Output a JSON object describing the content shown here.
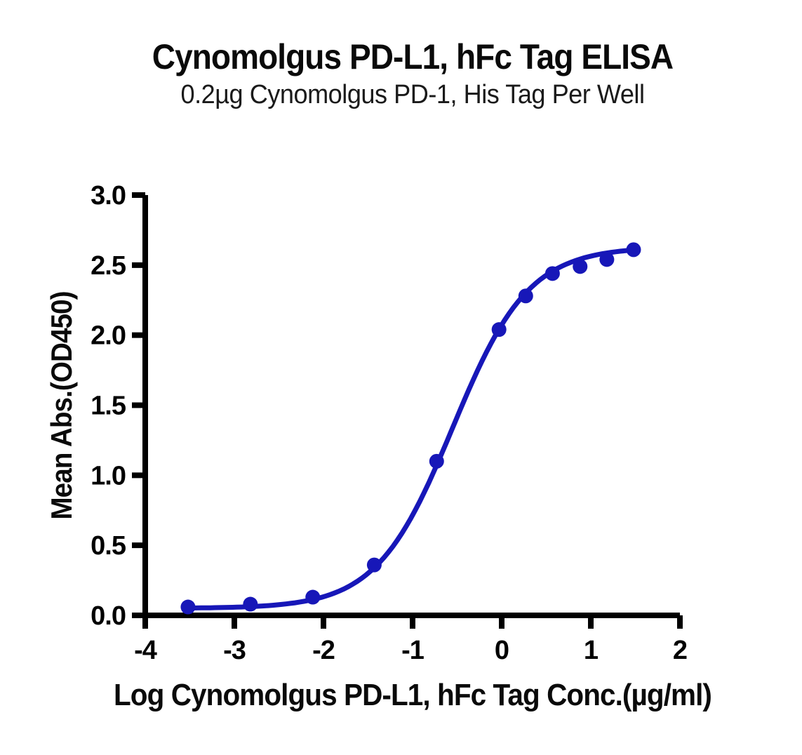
{
  "title": "Cynomolgus PD-L1, hFc Tag ELISA",
  "subtitle": "0.2µg Cynomolgus PD-1, His Tag Per Well",
  "chart_data": {
    "type": "line",
    "title": "Cynomolgus PD-L1, hFc Tag ELISA",
    "subtitle": "0.2µg Cynomolgus PD-1, His Tag Per Well",
    "xlabel": "Log Cynomolgus PD-L1, hFc Tag Conc.(µg/ml)",
    "ylabel": "Mean Abs.(OD450)",
    "xlim": [
      -4,
      2
    ],
    "ylim": [
      0,
      3
    ],
    "xticks": [
      "-4",
      "-3",
      "-2",
      "-1",
      "0",
      "1",
      "2"
    ],
    "yticks": [
      "0.0",
      "0.5",
      "1.0",
      "1.5",
      "2.0",
      "2.5",
      "3.0"
    ],
    "grid": false,
    "legend": "none",
    "axis_color": "#000000",
    "background_color": "#ffffff",
    "series": [
      {
        "name": "Cynomolgus PD-L1, hFc Tag",
        "color": "#1717b8",
        "marker": "circle",
        "x": [
          -3.52,
          -2.82,
          -2.12,
          -1.43,
          -0.73,
          -0.03,
          0.27,
          0.57,
          0.88,
          1.18,
          1.48
        ],
        "y": [
          0.06,
          0.08,
          0.13,
          0.36,
          1.1,
          2.04,
          2.28,
          2.44,
          2.49,
          2.54,
          2.61
        ]
      }
    ],
    "fit_curve": {
      "model": "4PL",
      "bottom": 0.05,
      "top": 2.63,
      "log_ec50": -0.55,
      "hill_slope": 1.02
    }
  }
}
